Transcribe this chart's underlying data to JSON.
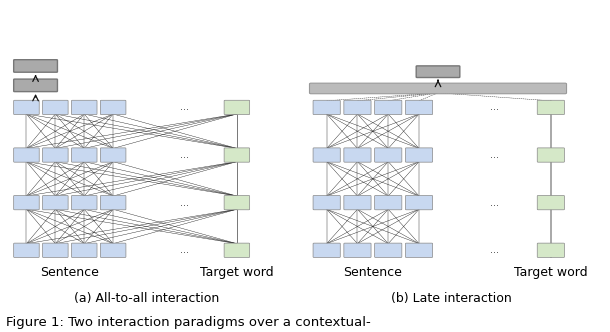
{
  "fig_width": 6.1,
  "fig_height": 3.32,
  "bg_color": "#ffffff",
  "blue_color": "#c8d8f0",
  "green_color": "#d5e8c8",
  "gray_box_color": "#aaaaaa",
  "gray_bar_color": "#bbbbbb",
  "line_color": "#111111",
  "dashed_line_color": "#444444",
  "caption_text": "Figure 1: Two interaction paradigms over a contextual-",
  "label_a": "(a) All-to-all interaction",
  "label_b": "(b) Late interaction",
  "sentence_label": "Sentence",
  "target_word_label": "Target word",
  "font_size_caption": 9.5,
  "font_size_label": 9,
  "font_size_dots": 7
}
